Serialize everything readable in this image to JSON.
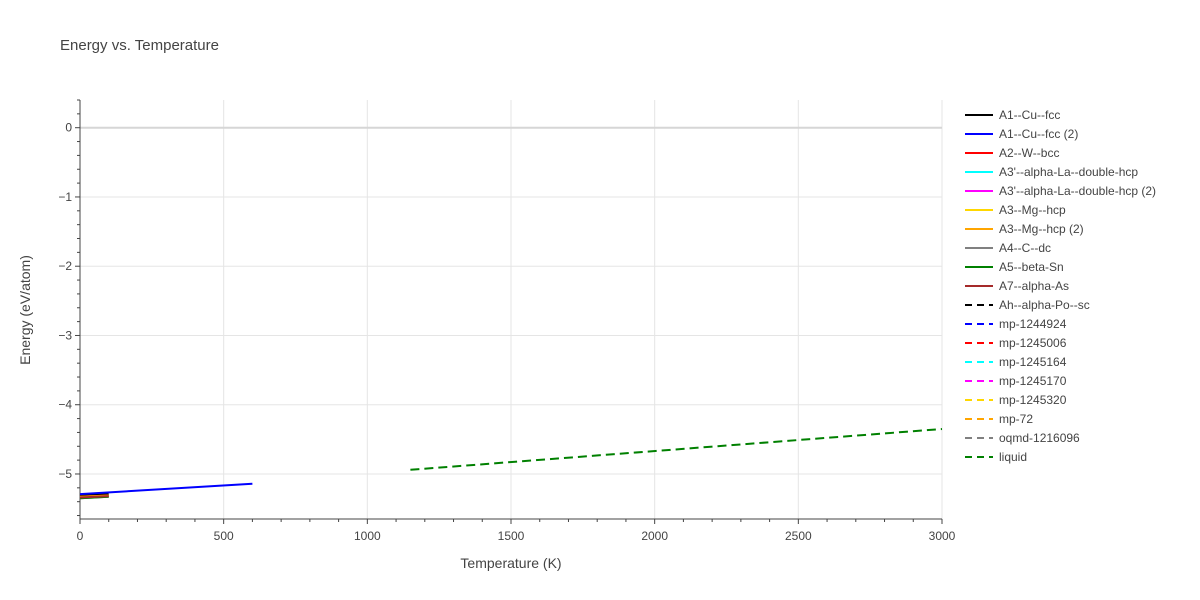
{
  "chart_data": {
    "type": "line",
    "title": "Energy vs. Temperature",
    "xlabel": "Temperature (K)",
    "ylabel": "Energy (eV/atom)",
    "xlim": [
      0,
      3000
    ],
    "ylim": [
      -5.65,
      0.4
    ],
    "xticks": [
      0,
      500,
      1000,
      1500,
      2000,
      2500,
      3000
    ],
    "xtick_labels": [
      "0",
      "500",
      "1000",
      "1500",
      "2000",
      "2500",
      "3000"
    ],
    "yticks": [
      0,
      -1,
      -2,
      -3,
      -4,
      -5
    ],
    "ytick_labels": [
      "0",
      "−1",
      "−2",
      "−3",
      "−4",
      "−5"
    ],
    "grid": true,
    "legend_position": "right",
    "series": [
      {
        "name": "A1--Cu--fcc",
        "color": "#000000",
        "dash": "solid",
        "x": [
          0,
          100
        ],
        "y": [
          -5.31,
          -5.29
        ]
      },
      {
        "name": "A1--Cu--fcc (2)",
        "color": "#0000ff",
        "dash": "solid",
        "x": [
          0,
          600
        ],
        "y": [
          -5.29,
          -5.14
        ]
      },
      {
        "name": "A2--W--bcc",
        "color": "#ff0000",
        "dash": "solid",
        "x": [
          0,
          100
        ],
        "y": [
          -5.33,
          -5.31
        ]
      },
      {
        "name": "A3'--alpha-La--double-hcp",
        "color": "#00ffff",
        "dash": "solid",
        "x": [
          0,
          100
        ],
        "y": [
          -5.34,
          -5.32
        ]
      },
      {
        "name": "A3'--alpha-La--double-hcp (2)",
        "color": "#ff00ff",
        "dash": "solid",
        "x": [
          0,
          100
        ],
        "y": [
          -5.34,
          -5.32
        ]
      },
      {
        "name": "A3--Mg--hcp",
        "color": "#ffd700",
        "dash": "solid",
        "x": [
          0,
          100
        ],
        "y": [
          -5.34,
          -5.32
        ]
      },
      {
        "name": "A3--Mg--hcp (2)",
        "color": "#ffa500",
        "dash": "solid",
        "x": [
          0,
          100
        ],
        "y": [
          -5.33,
          -5.31
        ]
      },
      {
        "name": "A4--C--dc",
        "color": "#808080",
        "dash": "solid",
        "x": [
          0,
          100
        ],
        "y": [
          -5.35,
          -5.33
        ]
      },
      {
        "name": "A5--beta-Sn",
        "color": "#008000",
        "dash": "solid",
        "x": [
          0,
          100
        ],
        "y": [
          -5.35,
          -5.33
        ]
      },
      {
        "name": "A7--alpha-As",
        "color": "#a52a2a",
        "dash": "solid",
        "x": [
          0,
          100
        ],
        "y": [
          -5.34,
          -5.32
        ]
      },
      {
        "name": "Ah--alpha-Po--sc",
        "color": "#000000",
        "dash": "dash",
        "x": [],
        "y": []
      },
      {
        "name": "mp-1244924",
        "color": "#0000ff",
        "dash": "dash",
        "x": [],
        "y": []
      },
      {
        "name": "mp-1245006",
        "color": "#ff0000",
        "dash": "dash",
        "x": [],
        "y": []
      },
      {
        "name": "mp-1245164",
        "color": "#00ffff",
        "dash": "dash",
        "x": [],
        "y": []
      },
      {
        "name": "mp-1245170",
        "color": "#ff00ff",
        "dash": "dash",
        "x": [],
        "y": []
      },
      {
        "name": "mp-1245320",
        "color": "#ffd700",
        "dash": "dash",
        "x": [],
        "y": []
      },
      {
        "name": "mp-72",
        "color": "#ffa500",
        "dash": "dash",
        "x": [],
        "y": []
      },
      {
        "name": "oqmd-1216096",
        "color": "#808080",
        "dash": "dash",
        "x": [],
        "y": []
      },
      {
        "name": "liquid",
        "color": "#008000",
        "dash": "dash",
        "x": [
          1150,
          3000
        ],
        "y": [
          -4.94,
          -4.35
        ]
      }
    ]
  }
}
